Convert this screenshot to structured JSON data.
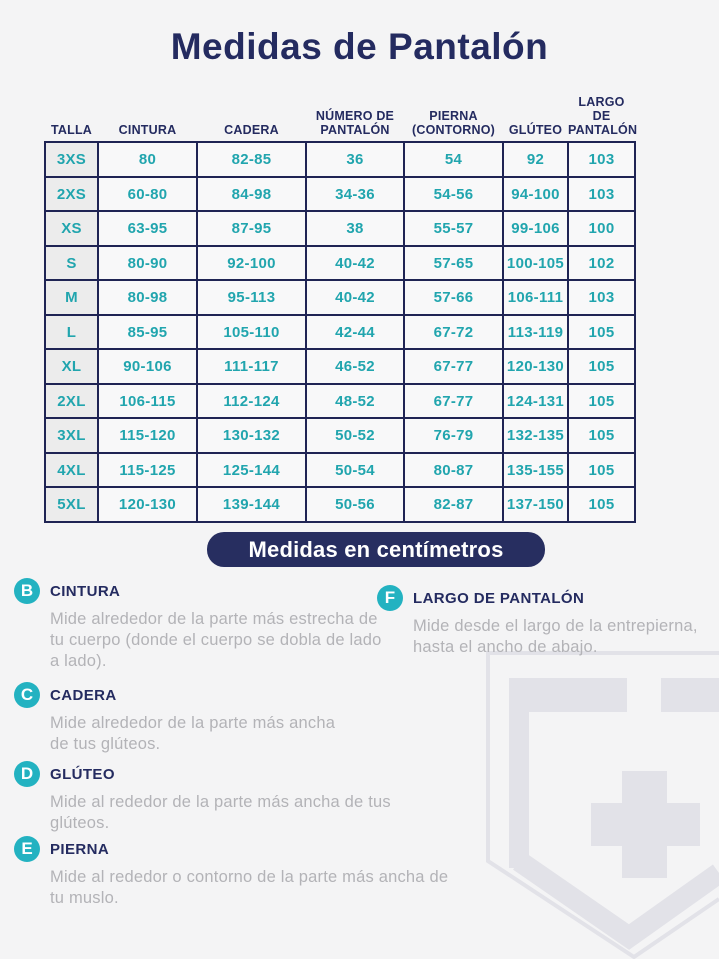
{
  "page": {
    "title": "Medidas de Pantalón",
    "units_banner": "Medidas en centímetros"
  },
  "colors": {
    "navy": "#242b60",
    "table_border_navy": "#1f2454",
    "value_teal": "#21a5ae",
    "badge_teal": "#23b2c1",
    "banner_navy": "#272e60",
    "muted_text_gray": "#b3b3b7",
    "watermark_gray": "#e2e2e8",
    "background": "#f4f4f5"
  },
  "table": {
    "columns": [
      "TALLA",
      "CINTURA",
      "CADERA",
      "NÚMERO DE\nPANTALÓN",
      "PIERNA\n(CONTORNO)",
      "GLÚTEO",
      "LARGO DE\nPANTALÓN"
    ],
    "rows": [
      [
        "3XS",
        "80",
        "82-85",
        "36",
        "54",
        "92",
        "103"
      ],
      [
        "2XS",
        "60-80",
        "84-98",
        "34-36",
        "54-56",
        "94-100",
        "103"
      ],
      [
        "XS",
        "63-95",
        "87-95",
        "38",
        "55-57",
        "99-106",
        "100"
      ],
      [
        "S",
        "80-90",
        "92-100",
        "40-42",
        "57-65",
        "100-105",
        "102"
      ],
      [
        "M",
        "80-98",
        "95-113",
        "40-42",
        "57-66",
        "106-111",
        "103"
      ],
      [
        "L",
        "85-95",
        "105-110",
        "42-44",
        "67-72",
        "113-119",
        "105"
      ],
      [
        "XL",
        "90-106",
        "111-117",
        "46-52",
        "67-77",
        "120-130",
        "105"
      ],
      [
        "2XL",
        "106-115",
        "112-124",
        "48-52",
        "67-77",
        "124-131",
        "105"
      ],
      [
        "3XL",
        "115-120",
        "130-132",
        "50-52",
        "76-79",
        "132-135",
        "105"
      ],
      [
        "4XL",
        "115-125",
        "125-144",
        "50-54",
        "80-87",
        "135-155",
        "105"
      ],
      [
        "5XL",
        "120-130",
        "139-144",
        "50-56",
        "82-87",
        "137-150",
        "105"
      ]
    ]
  },
  "definitions": {
    "b": {
      "letter": "B",
      "title": "CINTURA",
      "text": "Mide alrededor de la parte más estrecha de tu cuerpo (donde el cuerpo se dobla de lado a lado)."
    },
    "c": {
      "letter": "C",
      "title": "CADERA",
      "text": "Mide alrededor de la parte más ancha de tus glúteos."
    },
    "d": {
      "letter": "D",
      "title": "GLÚTEO",
      "text": "Mide al rededor de la parte más ancha de tus glúteos."
    },
    "e": {
      "letter": "E",
      "title": "PIERNA",
      "text": "Mide al rededor o contorno de la parte más ancha de tu muslo."
    },
    "f": {
      "letter": "F",
      "title": "LARGO DE PANTALÓN",
      "text": "Mide desde el largo de la entrepierna, hasta el ancho de abajo."
    }
  },
  "watermark": {
    "icon": "shield-cross-logo"
  }
}
